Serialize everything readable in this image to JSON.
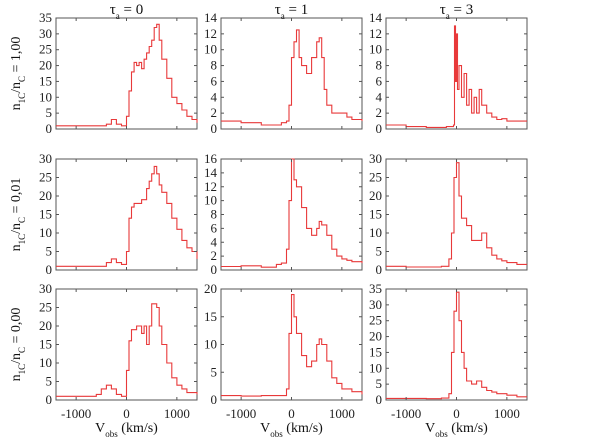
{
  "chart_data": {
    "type": "line",
    "layout": "3x3 grid",
    "column_titles": [
      {
        "symbol": "τ",
        "subscript": "a",
        "value": "= 0"
      },
      {
        "symbol": "τ",
        "subscript": "a",
        "value": "= 1"
      },
      {
        "symbol": "τ",
        "subscript": "a",
        "value": "= 3"
      }
    ],
    "row_labels": [
      {
        "num": "n",
        "num_sub": "1C",
        "den": "n",
        "den_sub": "C",
        "value": "= 1,00"
      },
      {
        "num": "n",
        "num_sub": "1C",
        "den": "n",
        "den_sub": "C",
        "value": "= 0,01"
      },
      {
        "num": "n",
        "num_sub": "1C",
        "den": "n",
        "den_sub": "C",
        "value": "= 0,00"
      }
    ],
    "xlabel": {
      "main": "V",
      "sub": "obs",
      "unit": "(km/s)"
    },
    "xlim": [
      -1400,
      1400
    ],
    "xticks": [
      -1000,
      0,
      1000
    ],
    "xtick_labels": [
      "-1000",
      "0",
      "1000"
    ],
    "line_color": "#e8393a",
    "panels": [
      {
        "row": 0,
        "col": 0,
        "ylim": [
          0,
          35
        ],
        "yticks": [
          0,
          5,
          10,
          15,
          20,
          25,
          30,
          35
        ],
        "series": [
          [
            -1400,
            1
          ],
          [
            -600,
            1
          ],
          [
            -400,
            1.5
          ],
          [
            -300,
            3
          ],
          [
            -200,
            1.5
          ],
          [
            -100,
            1
          ],
          [
            0,
            4
          ],
          [
            50,
            12
          ],
          [
            100,
            18
          ],
          [
            150,
            21
          ],
          [
            200,
            20
          ],
          [
            250,
            21
          ],
          [
            300,
            19
          ],
          [
            350,
            22
          ],
          [
            400,
            24
          ],
          [
            450,
            26
          ],
          [
            500,
            28
          ],
          [
            550,
            32
          ],
          [
            600,
            33
          ],
          [
            650,
            28
          ],
          [
            700,
            22
          ],
          [
            800,
            16
          ],
          [
            900,
            10
          ],
          [
            1000,
            8
          ],
          [
            1100,
            6
          ],
          [
            1200,
            4
          ],
          [
            1300,
            3
          ],
          [
            1400,
            2
          ]
        ]
      },
      {
        "row": 0,
        "col": 1,
        "ylim": [
          0,
          14
        ],
        "yticks": [
          0,
          2,
          4,
          6,
          8,
          10,
          12,
          14
        ],
        "series": [
          [
            -1400,
            1
          ],
          [
            -1000,
            0.8
          ],
          [
            -600,
            0.5
          ],
          [
            -200,
            0.8
          ],
          [
            -100,
            1
          ],
          [
            -50,
            3
          ],
          [
            0,
            9
          ],
          [
            50,
            11
          ],
          [
            100,
            12.5
          ],
          [
            150,
            9
          ],
          [
            200,
            8
          ],
          [
            300,
            7
          ],
          [
            400,
            9
          ],
          [
            500,
            11
          ],
          [
            550,
            11.5
          ],
          [
            600,
            9
          ],
          [
            650,
            5
          ],
          [
            700,
            3
          ],
          [
            800,
            2
          ],
          [
            900,
            2
          ],
          [
            1000,
            2
          ],
          [
            1100,
            1.5
          ],
          [
            1200,
            1.2
          ],
          [
            1400,
            1
          ]
        ]
      },
      {
        "row": 0,
        "col": 2,
        "ylim": [
          0,
          14
        ],
        "yticks": [
          0,
          2,
          4,
          6,
          8,
          10,
          12,
          14
        ],
        "series": [
          [
            -1400,
            0.5
          ],
          [
            -1000,
            0.3
          ],
          [
            -600,
            0.2
          ],
          [
            -200,
            0.3
          ],
          [
            -60,
            0.5
          ],
          [
            -40,
            13
          ],
          [
            -20,
            6
          ],
          [
            0,
            12
          ],
          [
            20,
            5
          ],
          [
            50,
            8
          ],
          [
            100,
            4
          ],
          [
            150,
            7
          ],
          [
            200,
            3
          ],
          [
            250,
            5
          ],
          [
            300,
            2
          ],
          [
            350,
            4
          ],
          [
            400,
            2
          ],
          [
            450,
            5
          ],
          [
            500,
            3
          ],
          [
            600,
            2
          ],
          [
            700,
            1.5
          ],
          [
            800,
            1.2
          ],
          [
            900,
            1.3
          ],
          [
            1000,
            1
          ],
          [
            1200,
            1
          ],
          [
            1400,
            1
          ]
        ]
      },
      {
        "row": 1,
        "col": 0,
        "ylim": [
          0,
          30
        ],
        "yticks": [
          0,
          5,
          10,
          15,
          20,
          25,
          30
        ],
        "series": [
          [
            -1400,
            1
          ],
          [
            -600,
            1
          ],
          [
            -400,
            2
          ],
          [
            -300,
            3
          ],
          [
            -200,
            2
          ],
          [
            -100,
            1.5
          ],
          [
            0,
            5
          ],
          [
            50,
            14
          ],
          [
            100,
            17
          ],
          [
            150,
            18
          ],
          [
            200,
            18
          ],
          [
            300,
            19
          ],
          [
            400,
            22
          ],
          [
            450,
            24
          ],
          [
            500,
            26
          ],
          [
            550,
            28
          ],
          [
            600,
            26
          ],
          [
            650,
            23
          ],
          [
            700,
            21
          ],
          [
            800,
            18
          ],
          [
            900,
            14
          ],
          [
            1000,
            11
          ],
          [
            1100,
            8
          ],
          [
            1200,
            6
          ],
          [
            1300,
            5
          ],
          [
            1400,
            3
          ]
        ]
      },
      {
        "row": 1,
        "col": 1,
        "ylim": [
          0,
          16
        ],
        "yticks": [
          0,
          2,
          4,
          6,
          8,
          10,
          12,
          14,
          16
        ],
        "series": [
          [
            -1400,
            0.5
          ],
          [
            -1000,
            0.6
          ],
          [
            -600,
            0.4
          ],
          [
            -300,
            0.8
          ],
          [
            -200,
            1
          ],
          [
            -100,
            3
          ],
          [
            -50,
            10
          ],
          [
            0,
            16
          ],
          [
            50,
            13
          ],
          [
            100,
            12
          ],
          [
            200,
            9
          ],
          [
            300,
            6
          ],
          [
            400,
            5
          ],
          [
            500,
            6
          ],
          [
            550,
            7
          ],
          [
            600,
            6.5
          ],
          [
            700,
            5
          ],
          [
            800,
            3
          ],
          [
            900,
            2
          ],
          [
            1000,
            1.6
          ],
          [
            1100,
            1.4
          ],
          [
            1200,
            1.2
          ],
          [
            1400,
            1
          ]
        ]
      },
      {
        "row": 1,
        "col": 2,
        "ylim": [
          0,
          30
        ],
        "yticks": [
          0,
          5,
          10,
          15,
          20,
          25,
          30
        ],
        "series": [
          [
            -1400,
            1
          ],
          [
            -1000,
            0.8
          ],
          [
            -600,
            0.8
          ],
          [
            -300,
            1
          ],
          [
            -150,
            3
          ],
          [
            -100,
            10
          ],
          [
            -50,
            25
          ],
          [
            0,
            29
          ],
          [
            50,
            20
          ],
          [
            100,
            14
          ],
          [
            200,
            12
          ],
          [
            300,
            8
          ],
          [
            400,
            8
          ],
          [
            500,
            10
          ],
          [
            600,
            6
          ],
          [
            700,
            4
          ],
          [
            800,
            3
          ],
          [
            900,
            2.5
          ],
          [
            1000,
            2
          ],
          [
            1200,
            1.5
          ],
          [
            1400,
            1.5
          ]
        ]
      },
      {
        "row": 2,
        "col": 0,
        "ylim": [
          0,
          30
        ],
        "yticks": [
          0,
          5,
          10,
          15,
          20,
          25,
          30
        ],
        "series": [
          [
            -1400,
            1
          ],
          [
            -800,
            1
          ],
          [
            -600,
            1.5
          ],
          [
            -500,
            3
          ],
          [
            -400,
            4
          ],
          [
            -300,
            3
          ],
          [
            -200,
            1.5
          ],
          [
            -100,
            1
          ],
          [
            0,
            8
          ],
          [
            50,
            16
          ],
          [
            100,
            19
          ],
          [
            150,
            19
          ],
          [
            200,
            20
          ],
          [
            300,
            18
          ],
          [
            350,
            20
          ],
          [
            400,
            15
          ],
          [
            450,
            20
          ],
          [
            500,
            26
          ],
          [
            550,
            26
          ],
          [
            600,
            25
          ],
          [
            650,
            20
          ],
          [
            700,
            15
          ],
          [
            800,
            10
          ],
          [
            900,
            6
          ],
          [
            1000,
            4
          ],
          [
            1100,
            3
          ],
          [
            1200,
            2
          ],
          [
            1400,
            1.5
          ]
        ]
      },
      {
        "row": 2,
        "col": 1,
        "ylim": [
          0,
          20
        ],
        "yticks": [
          0,
          5,
          10,
          15,
          20
        ],
        "series": [
          [
            -1400,
            0.8
          ],
          [
            -1000,
            0.7
          ],
          [
            -600,
            0.8
          ],
          [
            -300,
            0.8
          ],
          [
            -100,
            2
          ],
          [
            -50,
            12
          ],
          [
            0,
            19
          ],
          [
            50,
            15
          ],
          [
            100,
            12
          ],
          [
            200,
            8
          ],
          [
            300,
            6
          ],
          [
            400,
            7
          ],
          [
            500,
            10
          ],
          [
            550,
            11
          ],
          [
            600,
            10
          ],
          [
            700,
            7
          ],
          [
            800,
            4
          ],
          [
            900,
            3
          ],
          [
            1000,
            2
          ],
          [
            1200,
            1.5
          ],
          [
            1400,
            1
          ]
        ]
      },
      {
        "row": 2,
        "col": 2,
        "ylim": [
          0,
          35
        ],
        "yticks": [
          0,
          5,
          10,
          15,
          20,
          25,
          30,
          35
        ],
        "series": [
          [
            -1400,
            0.5
          ],
          [
            -1000,
            0.5
          ],
          [
            -600,
            0.4
          ],
          [
            -300,
            0.6
          ],
          [
            -150,
            2
          ],
          [
            -100,
            15
          ],
          [
            -50,
            28
          ],
          [
            0,
            34
          ],
          [
            50,
            25
          ],
          [
            100,
            15
          ],
          [
            150,
            10
          ],
          [
            200,
            6
          ],
          [
            300,
            5
          ],
          [
            400,
            6
          ],
          [
            500,
            4
          ],
          [
            600,
            3
          ],
          [
            700,
            2.5
          ],
          [
            800,
            2
          ],
          [
            1000,
            1.5
          ],
          [
            1200,
            1
          ],
          [
            1400,
            1
          ]
        ]
      }
    ]
  }
}
